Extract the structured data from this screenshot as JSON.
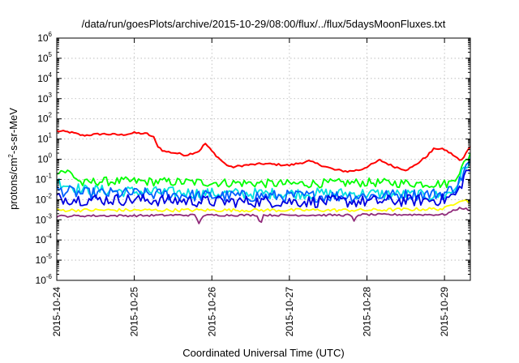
{
  "chart_data": {
    "type": "line",
    "title": "/data/run/goesPlots/archive/2015-10-29/08:00/flux/../flux/5daysMoonFluxes.txt",
    "xlabel": "Coordinated Universal Time (UTC)",
    "ylabel": {
      "prefix": "protons/cm",
      "sup": "2",
      "suffix": "-s-sr-MeV"
    },
    "x_scale": "time",
    "y_scale": "log",
    "xlim": [
      "2015-10-24 00:00",
      "2015-10-29 08:00"
    ],
    "ylim": [
      1e-06,
      1000000.0
    ],
    "grid": true,
    "legend": "none",
    "x_ticks": [
      {
        "t": "2015-10-24",
        "label": "2015-10-24"
      },
      {
        "t": "2015-10-25",
        "label": "2015-10-25"
      },
      {
        "t": "2015-10-26",
        "label": "2015-10-26"
      },
      {
        "t": "2015-10-27",
        "label": "2015-10-27"
      },
      {
        "t": "2015-10-28",
        "label": "2015-10-28"
      },
      {
        "t": "2015-10-29",
        "label": "2015-10-29"
      }
    ],
    "y_ticks": [
      {
        "v": 1e-06,
        "base": "10",
        "exp": "-6"
      },
      {
        "v": 1e-05,
        "base": "10",
        "exp": "-5"
      },
      {
        "v": 0.0001,
        "base": "10",
        "exp": "-4"
      },
      {
        "v": 0.001,
        "base": "10",
        "exp": "-3"
      },
      {
        "v": 0.01,
        "base": "10",
        "exp": "-2"
      },
      {
        "v": 0.1,
        "base": "10",
        "exp": "-1"
      },
      {
        "v": 1,
        "base": "10",
        "exp": "0"
      },
      {
        "v": 10,
        "base": "10",
        "exp": "1"
      },
      {
        "v": 100,
        "base": "10",
        "exp": "2"
      },
      {
        "v": 1000,
        "base": "10",
        "exp": "3"
      },
      {
        "v": 10000,
        "base": "10",
        "exp": "4"
      },
      {
        "v": 100000,
        "base": "10",
        "exp": "5"
      },
      {
        "v": 1000000,
        "base": "10",
        "exp": "6"
      }
    ],
    "series": [
      {
        "color": "#ff0000",
        "noise": 0.05,
        "points": [
          [
            "2015-10-24 00:00",
            25
          ],
          [
            "2015-10-24 04:00",
            22
          ],
          [
            "2015-10-24 08:00",
            15
          ],
          [
            "2015-10-24 14:00",
            18
          ],
          [
            "2015-10-24 20:00",
            16
          ],
          [
            "2015-10-25 00:00",
            20
          ],
          [
            "2015-10-25 04:00",
            18
          ],
          [
            "2015-10-25 06:00",
            12
          ],
          [
            "2015-10-25 07:00",
            5
          ],
          [
            "2015-10-25 09:00",
            2.5
          ],
          [
            "2015-10-25 13:00",
            2
          ],
          [
            "2015-10-25 16:00",
            1.6
          ],
          [
            "2015-10-25 18:00",
            2
          ],
          [
            "2015-10-25 20:00",
            2.5
          ],
          [
            "2015-10-25 21:00",
            4
          ],
          [
            "2015-10-25 22:00",
            6
          ],
          [
            "2015-10-26 00:00",
            2.5
          ],
          [
            "2015-10-26 02:00",
            1.2
          ],
          [
            "2015-10-26 04:00",
            0.6
          ],
          [
            "2015-10-26 06:00",
            0.4
          ],
          [
            "2015-10-26 10:00",
            0.5
          ],
          [
            "2015-10-26 16:00",
            0.6
          ],
          [
            "2015-10-27 00:00",
            0.5
          ],
          [
            "2015-10-27 06:00",
            0.8
          ],
          [
            "2015-10-27 10:00",
            0.5
          ],
          [
            "2015-10-27 14:00",
            0.3
          ],
          [
            "2015-10-27 18:00",
            0.25
          ],
          [
            "2015-10-27 22:00",
            0.3
          ],
          [
            "2015-10-28 02:00",
            0.6
          ],
          [
            "2015-10-28 04:00",
            0.9
          ],
          [
            "2015-10-28 08:00",
            0.45
          ],
          [
            "2015-10-28 12:00",
            0.3
          ],
          [
            "2015-10-28 14:00",
            0.4
          ],
          [
            "2015-10-28 18:00",
            1.2
          ],
          [
            "2015-10-28 21:00",
            3.5
          ],
          [
            "2015-10-29 00:00",
            3
          ],
          [
            "2015-10-29 03:00",
            1.5
          ],
          [
            "2015-10-29 05:00",
            0.8
          ],
          [
            "2015-10-29 06:00",
            1.2
          ],
          [
            "2015-10-29 07:00",
            3
          ],
          [
            "2015-10-29 08:00",
            4
          ]
        ]
      },
      {
        "color": "#00ff00",
        "noise": 0.22,
        "points": [
          [
            "2015-10-24 00:00",
            0.3
          ],
          [
            "2015-10-24 04:00",
            0.22
          ],
          [
            "2015-10-24 08:00",
            0.06
          ],
          [
            "2015-10-24 12:00",
            0.08
          ],
          [
            "2015-10-25 00:00",
            0.08
          ],
          [
            "2015-10-26 00:00",
            0.07
          ],
          [
            "2015-10-27 00:00",
            0.06
          ],
          [
            "2015-10-28 00:00",
            0.07
          ],
          [
            "2015-10-29 00:00",
            0.06
          ],
          [
            "2015-10-29 02:00",
            0.07
          ],
          [
            "2015-10-29 05:00",
            0.3
          ],
          [
            "2015-10-29 07:00",
            1
          ],
          [
            "2015-10-29 08:00",
            2
          ]
        ]
      },
      {
        "color": "#00e0e0",
        "noise": 0.28,
        "points": [
          [
            "2015-10-24 00:00",
            0.08
          ],
          [
            "2015-10-24 08:00",
            0.03
          ],
          [
            "2015-10-25 00:00",
            0.025
          ],
          [
            "2015-10-26 00:00",
            0.02
          ],
          [
            "2015-10-27 00:00",
            0.02
          ],
          [
            "2015-10-28 00:00",
            0.02
          ],
          [
            "2015-10-29 00:00",
            0.015
          ],
          [
            "2015-10-29 03:00",
            0.03
          ],
          [
            "2015-10-29 06:00",
            0.3
          ],
          [
            "2015-10-29 08:00",
            1
          ]
        ]
      },
      {
        "color": "#0060ff",
        "noise": 0.3,
        "points": [
          [
            "2015-10-24 00:00",
            0.03
          ],
          [
            "2015-10-24 08:00",
            0.02
          ],
          [
            "2015-10-25 00:00",
            0.02
          ],
          [
            "2015-10-26 00:00",
            0.015
          ],
          [
            "2015-10-27 00:00",
            0.015
          ],
          [
            "2015-10-28 00:00",
            0.015
          ],
          [
            "2015-10-29 00:00",
            0.02
          ],
          [
            "2015-10-29 04:00",
            0.05
          ],
          [
            "2015-10-29 07:00",
            0.5
          ],
          [
            "2015-10-29 08:00",
            0.6
          ]
        ]
      },
      {
        "color": "#0000e0",
        "noise": 0.3,
        "points": [
          [
            "2015-10-24 00:00",
            0.012
          ],
          [
            "2015-10-24 08:00",
            0.01
          ],
          [
            "2015-10-25 00:00",
            0.01
          ],
          [
            "2015-10-26 00:00",
            0.008
          ],
          [
            "2015-10-27 00:00",
            0.008
          ],
          [
            "2015-10-28 00:00",
            0.008
          ],
          [
            "2015-10-29 00:00",
            0.01
          ],
          [
            "2015-10-29 04:00",
            0.02
          ],
          [
            "2015-10-29 07:00",
            0.3
          ],
          [
            "2015-10-29 08:00",
            0.3
          ]
        ]
      },
      {
        "color": "#ffff00",
        "noise": 0.08,
        "points": [
          [
            "2015-10-24 00:00",
            0.003
          ],
          [
            "2015-10-25 00:00",
            0.003
          ],
          [
            "2015-10-26 00:00",
            0.003
          ],
          [
            "2015-10-27 00:00",
            0.003
          ],
          [
            "2015-10-28 00:00",
            0.003
          ],
          [
            "2015-10-29 00:00",
            0.0035
          ],
          [
            "2015-10-29 05:00",
            0.01
          ],
          [
            "2015-10-29 08:00",
            0.008
          ]
        ]
      },
      {
        "color": "#902a7a",
        "noise": 0.05,
        "points": [
          [
            "2015-10-24 00:00",
            0.0015
          ],
          [
            "2015-10-24 12:00",
            0.0016
          ],
          [
            "2015-10-25 00:00",
            0.0016
          ],
          [
            "2015-10-25 12:00",
            0.0017
          ],
          [
            "2015-10-25 19:00",
            0.0017
          ],
          [
            "2015-10-25 20:00",
            0.0006
          ],
          [
            "2015-10-25 21:00",
            0.0016
          ],
          [
            "2015-10-26 00:00",
            0.0017
          ],
          [
            "2015-10-26 14:00",
            0.0017
          ],
          [
            "2015-10-26 15:00",
            0.0006
          ],
          [
            "2015-10-26 16:00",
            0.0017
          ],
          [
            "2015-10-27 12:00",
            0.0017
          ],
          [
            "2015-10-27 19:00",
            0.0017
          ],
          [
            "2015-10-27 20:00",
            0.0008
          ],
          [
            "2015-10-27 21:00",
            0.0018
          ],
          [
            "2015-10-28 12:00",
            0.0018
          ],
          [
            "2015-10-29 00:00",
            0.0018
          ],
          [
            "2015-10-29 05:00",
            0.004
          ],
          [
            "2015-10-29 08:00",
            0.003
          ]
        ]
      }
    ]
  }
}
